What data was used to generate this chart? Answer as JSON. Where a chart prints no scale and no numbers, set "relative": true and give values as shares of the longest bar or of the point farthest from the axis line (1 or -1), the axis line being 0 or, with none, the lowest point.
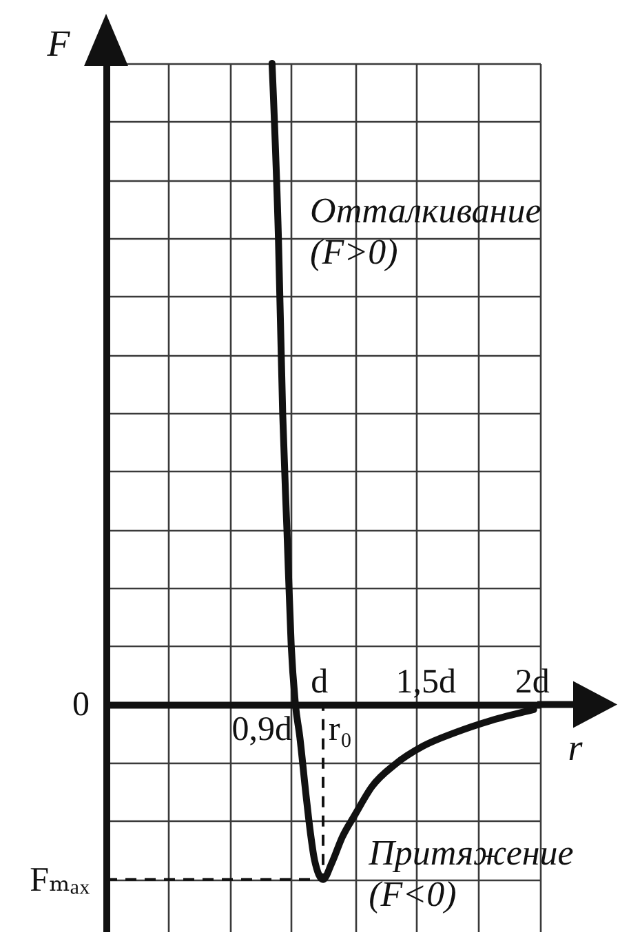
{
  "chart_data": {
    "type": "line",
    "xlabel": "r",
    "ylabel": "F",
    "relative": true,
    "annotations": [
      "Отталкивание\n(F>0)",
      "Притяжение\n(F<0)",
      "0",
      {
        "text": "Fₘₐₓ",
        "x": 0,
        "y": -0.273
      },
      {
        "text": "0,9d",
        "x": 0.9,
        "y": 0
      },
      {
        "text": "r₀",
        "x": 1.02,
        "y": 0
      }
    ],
    "series": [
      {
        "color": "#111111",
        "x": [
          0.78,
          0.81,
          0.83,
          0.85,
          0.87,
          0.89,
          0.91,
          0.94,
          0.96,
          0.98,
          1.02,
          1.06,
          1.11,
          1.17,
          1.25,
          1.36,
          1.49,
          1.64,
          1.81,
          2.01
        ],
        "values": [
          1,
          0.728,
          0.455,
          0.273,
          0.093,
          0,
          -0.049,
          -0.142,
          -0.199,
          -0.243,
          -0.273,
          -0.248,
          -0.207,
          -0.172,
          -0.128,
          -0.093,
          -0.065,
          -0.044,
          -0.025,
          -0.008
        ]
      },
      {
        "color": "#111111",
        "line_style": "dashed",
        "x": [
          0,
          1.02,
          1.02
        ],
        "values": [
          -0.273,
          -0.273,
          0
        ]
      }
    ],
    "xlim": [
      0,
      2.04
    ],
    "xticks": [
      {
        "value": 0.29,
        "label": null
      },
      {
        "value": 0.58,
        "label": null
      },
      {
        "value": 0.87,
        "label": null
      },
      {
        "value": 1,
        "label": "d"
      },
      {
        "value": 1.17,
        "label": null
      },
      {
        "value": 1.46,
        "label": null
      },
      {
        "value": 1.5,
        "label": "1,5d"
      },
      {
        "value": 1.75,
        "label": null
      },
      {
        "value": 2,
        "label": "2d"
      },
      {
        "value": 2.04,
        "label": null
      }
    ],
    "grid": true,
    "line_style": "solid"
  }
}
